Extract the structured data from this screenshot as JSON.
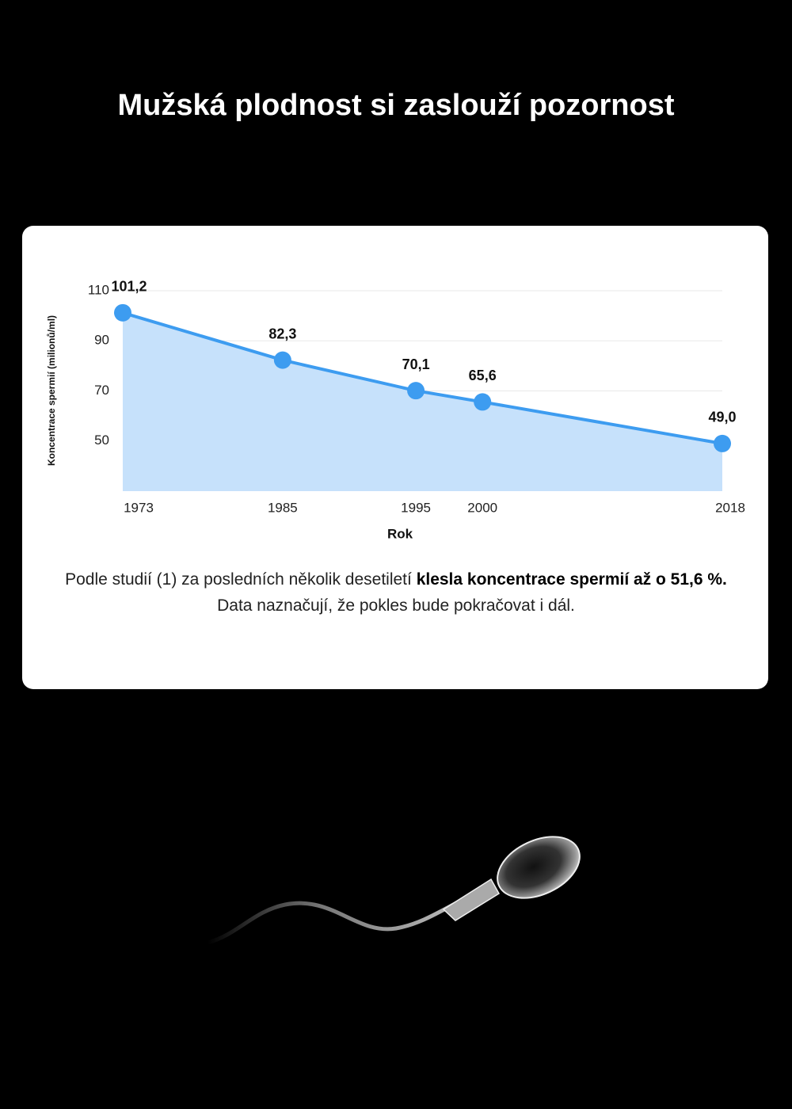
{
  "header": {
    "title": "Mužská plodnost si zaslouží pozornost"
  },
  "chart_data": {
    "type": "line",
    "x": [
      1973,
      1985,
      1995,
      2000,
      2018
    ],
    "values": [
      101.2,
      82.3,
      70.1,
      65.6,
      49.0
    ],
    "value_labels": [
      "101,2",
      "82,3",
      "70,1",
      "65,6",
      "49,0"
    ],
    "xlim": [
      1973,
      2018
    ],
    "xticks": [
      1973,
      1985,
      1995,
      2000,
      2018
    ],
    "ylim": [
      30,
      110
    ],
    "yticks": [
      50,
      70,
      90,
      110
    ],
    "x_label": "Rok",
    "y_label": "Koncentrace spermií (milionů/ml)",
    "color": "#3d9cf0",
    "area_color": "#c6e1fb",
    "grid": true
  },
  "paragraph": [
    {
      "text": "Podle studií (1) za posledních několik desetiletí ",
      "bold": false
    },
    {
      "text": "klesla koncentrace spermií až o 51,6 %.",
      "bold": true
    },
    {
      "text": " Data naznačují, že pokles bude pokračovat i dál.",
      "bold": false
    }
  ]
}
